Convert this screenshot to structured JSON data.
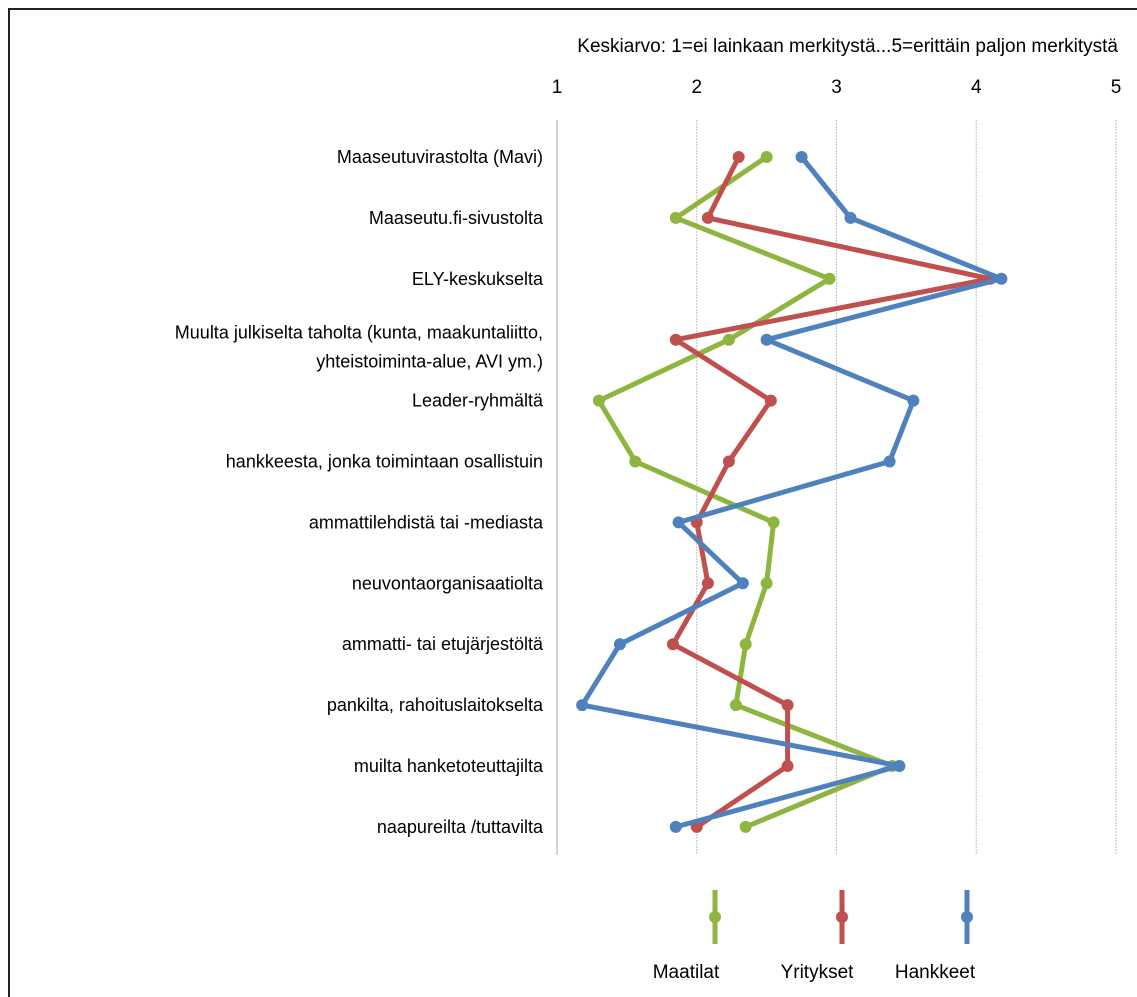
{
  "chart_data": {
    "type": "line",
    "orientation": "horizontal-values",
    "xlabel": "Keskiarvo: 1=ei lainkaan merkitystä...5=erittäin paljon merkitystä",
    "xlim": [
      1,
      5
    ],
    "xticks": [
      "1",
      "2",
      "3",
      "4",
      "5"
    ],
    "grid": "vertical",
    "legend_position": "bottom",
    "categories": [
      "Maaseutuvirastolta (Mavi)",
      "Maaseutu.fi-sivustolta",
      "ELY-keskukselta",
      [
        "Muulta julkiselta taholta (kunta, maakuntaliitto,",
        "yhteistoiminta-alue, AVI ym.)"
      ],
      "Leader-ryhmältä",
      "hankkeesta, jonka toimintaan osallistuin",
      "ammattilehdistä tai -mediasta",
      "neuvontaorganisaatiolta",
      "ammatti- tai etujärjestöltä",
      "pankilta, rahoituslaitokselta",
      "muilta hanketoteuttajilta",
      "naapureilta /tuttavilta"
    ],
    "series": [
      {
        "name": "Maatilat",
        "color": "#8db53f",
        "values": [
          2.5,
          1.85,
          2.95,
          2.23,
          1.3,
          1.56,
          2.55,
          2.5,
          2.35,
          2.28,
          3.4,
          2.35
        ]
      },
      {
        "name": "Yritykset",
        "color": "#c0504d",
        "values": [
          2.3,
          2.08,
          4.1,
          1.85,
          2.53,
          2.23,
          2.0,
          2.08,
          1.83,
          2.65,
          2.65,
          2.0
        ]
      },
      {
        "name": "Hankkeet",
        "color": "#4f81bd",
        "values": [
          2.75,
          3.1,
          4.18,
          2.5,
          3.55,
          3.38,
          1.87,
          2.33,
          1.45,
          1.18,
          3.45,
          1.85
        ]
      }
    ]
  }
}
